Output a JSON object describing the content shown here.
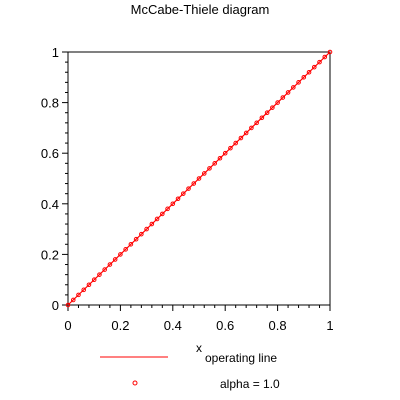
{
  "chart_data": {
    "type": "line",
    "title": "McCabe-Thiele diagram",
    "xlabel": "x",
    "ylabel": "",
    "xlim": [
      0,
      1
    ],
    "ylim": [
      0,
      1
    ],
    "x_ticks": [
      "0",
      "0.2",
      "0.4",
      "0.6",
      "0.8",
      "1"
    ],
    "y_ticks": [
      "0",
      "0.2",
      "0.4",
      "0.6",
      "0.8",
      "1"
    ],
    "grid": false,
    "legend_placement": "bottom",
    "series": [
      {
        "name": "operating line",
        "style": "line",
        "color": "#ff0000",
        "x": [
          0,
          1
        ],
        "y": [
          0,
          1
        ]
      },
      {
        "name": "alpha = 1.0",
        "style": "marker",
        "marker": "circle",
        "color": "#ff0000",
        "x": [
          0.0,
          0.02,
          0.04,
          0.06,
          0.08,
          0.1,
          0.12,
          0.14,
          0.16,
          0.18,
          0.2,
          0.22,
          0.24,
          0.26,
          0.28,
          0.3,
          0.32,
          0.34,
          0.36,
          0.38,
          0.4,
          0.42,
          0.44,
          0.46,
          0.48,
          0.5,
          0.52,
          0.54,
          0.56,
          0.58,
          0.6,
          0.62,
          0.64,
          0.66,
          0.68,
          0.7,
          0.72,
          0.74,
          0.76,
          0.78,
          0.8,
          0.82,
          0.84,
          0.86,
          0.88,
          0.9,
          0.92,
          0.94,
          0.96,
          0.98,
          1.0
        ],
        "y": [
          0.0,
          0.02,
          0.04,
          0.06,
          0.08,
          0.1,
          0.12,
          0.14,
          0.16,
          0.18,
          0.2,
          0.22,
          0.24,
          0.26,
          0.28,
          0.3,
          0.32,
          0.34,
          0.36,
          0.38,
          0.4,
          0.42,
          0.44,
          0.46,
          0.48,
          0.5,
          0.52,
          0.54,
          0.56,
          0.58,
          0.6,
          0.62,
          0.64,
          0.66,
          0.68,
          0.7,
          0.72,
          0.74,
          0.76,
          0.78,
          0.8,
          0.82,
          0.84,
          0.86,
          0.88,
          0.9,
          0.92,
          0.94,
          0.96,
          0.98,
          1.0
        ]
      }
    ]
  }
}
